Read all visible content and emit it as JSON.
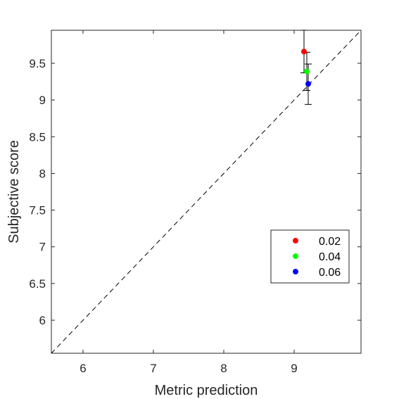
{
  "chart_data": {
    "type": "scatter",
    "xlabel": "Metric prediction",
    "ylabel": "Subjective score",
    "xlim": [
      5.55,
      9.95
    ],
    "ylim": [
      5.55,
      9.95
    ],
    "x_ticks": [
      6,
      7,
      8,
      9
    ],
    "y_ticks": [
      6,
      6.5,
      7,
      7.5,
      8,
      8.5,
      9,
      9.5
    ],
    "x_tick_labels": [
      "6",
      "7",
      "8",
      "9"
    ],
    "y_tick_labels": [
      "6",
      "6.5",
      "7",
      "7.5",
      "8",
      "8.5",
      "9",
      "9.5"
    ],
    "grid": false,
    "legend_position": "bottom-right",
    "reference_line": {
      "style": "dashed",
      "from": [
        5.55,
        5.55
      ],
      "to": [
        9.95,
        9.95
      ]
    },
    "series": [
      {
        "name": "0.02",
        "color": "#ff0000",
        "x": 9.14,
        "y": 9.66,
        "y_error_low": 9.37,
        "y_error_high": 9.95
      },
      {
        "name": "0.04",
        "color": "#00ff00",
        "x": 9.18,
        "y": 9.39,
        "y_error_low": 9.13,
        "y_error_high": 9.65
      },
      {
        "name": "0.06",
        "color": "#0000ff",
        "x": 9.2,
        "y": 9.22,
        "y_error_low": 8.94,
        "y_error_high": 9.49
      }
    ]
  }
}
